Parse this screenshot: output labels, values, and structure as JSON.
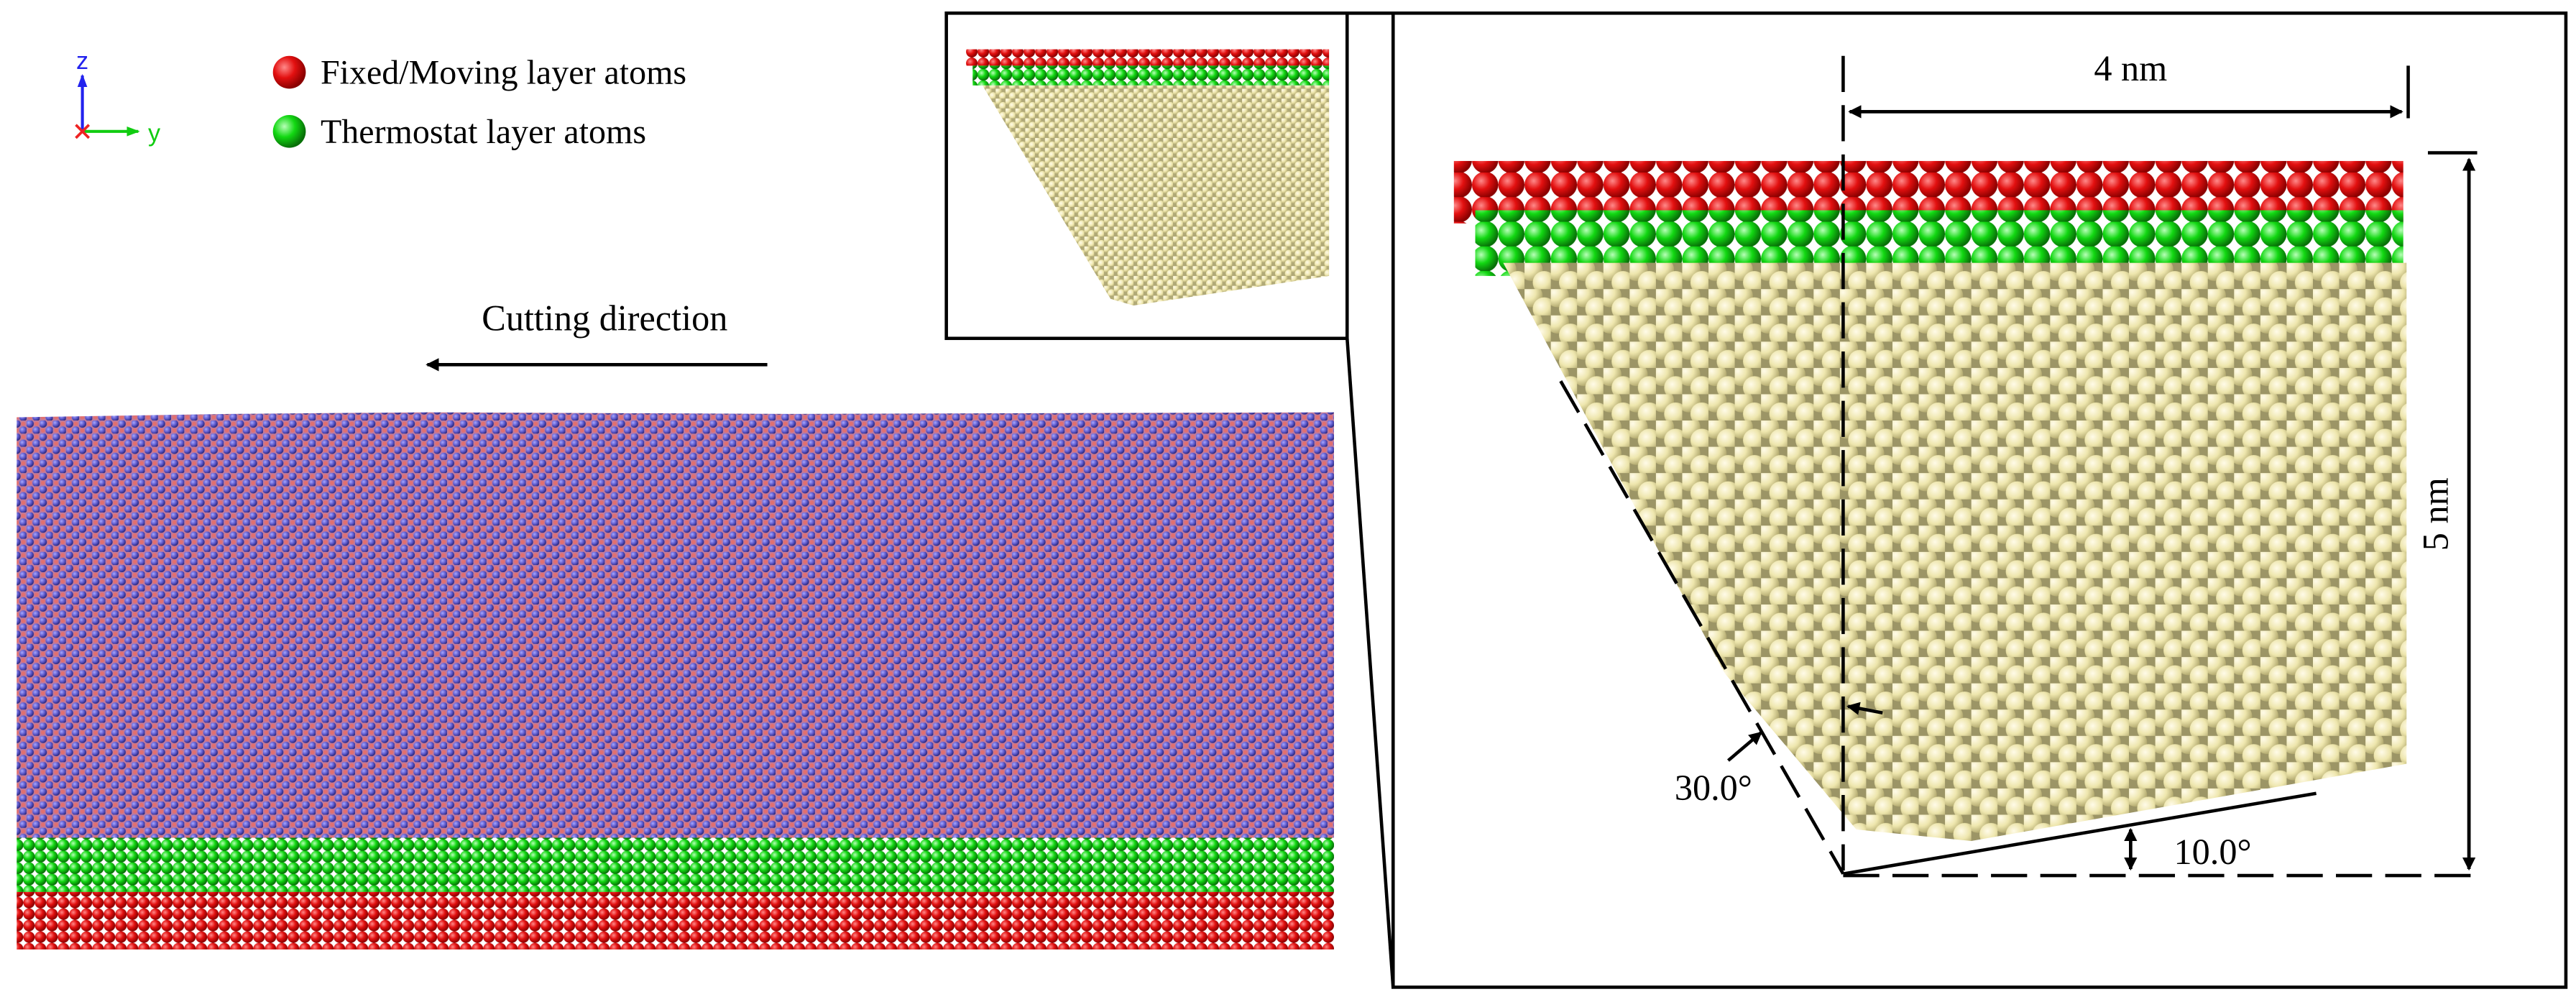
{
  "axes": {
    "z": "z",
    "y": "y"
  },
  "legend": [
    {
      "label": "Fixed/Moving layer atoms"
    },
    {
      "label": "Thermostat layer atoms"
    }
  ],
  "cutting_direction": "Cutting direction",
  "dimensions": {
    "width": "4 nm",
    "height": "5 nm"
  },
  "angles": {
    "clearance": "30.0°",
    "rake": "10.0°"
  }
}
